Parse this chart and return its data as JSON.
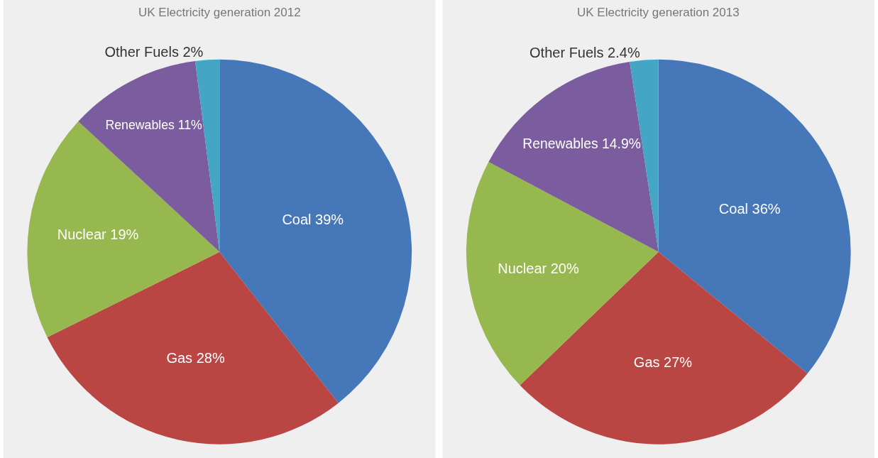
{
  "chart_data": [
    {
      "type": "pie",
      "title": "UK Electricity generation 2012",
      "categories": [
        "Coal",
        "Gas",
        "Nuclear",
        "Renewables",
        "Other Fuels"
      ],
      "values": [
        39,
        28,
        19,
        11,
        2
      ],
      "colors": [
        "#4677b8",
        "#b94643",
        "#97b74f",
        "#7b5c9e",
        "#44a6c4"
      ],
      "value_labels": [
        "39%",
        "28%",
        "19%",
        "11%",
        "2%"
      ]
    },
    {
      "type": "pie",
      "title": "UK Electricity generation 2013",
      "categories": [
        "Coal",
        "Gas",
        "Nuclear",
        "Renewables",
        "Other Fuels"
      ],
      "values": [
        36,
        27,
        20,
        14.9,
        2.4
      ],
      "colors": [
        "#4677b8",
        "#b94643",
        "#97b74f",
        "#7b5c9e",
        "#44a6c4"
      ],
      "value_labels": [
        "36%",
        "27%",
        "20%",
        "14.9%",
        "2.4%"
      ]
    }
  ]
}
